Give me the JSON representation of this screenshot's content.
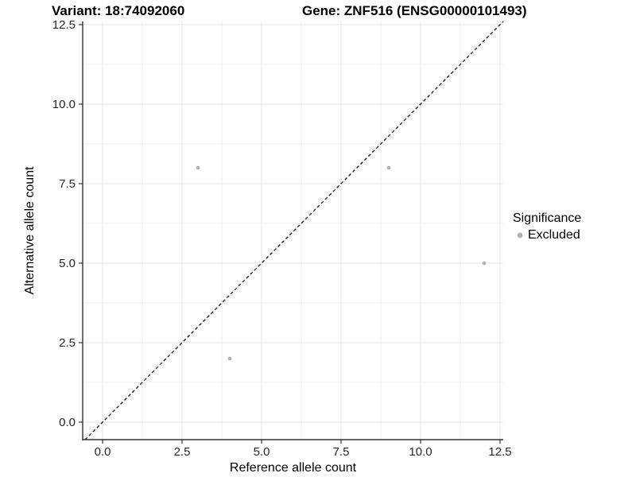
{
  "chart_data": {
    "type": "scatter",
    "titles": {
      "left": "Variant: 18:74092060",
      "right": "Gene: ZNF516 (ENSG00000101493)"
    },
    "xlabel": "Reference allele count",
    "ylabel": "Alternative allele count",
    "xlim": [
      -0.625,
      12.6
    ],
    "ylim": [
      -0.55,
      12.6
    ],
    "ticks": {
      "values": [
        0,
        2.5,
        5,
        7.5,
        10,
        12.5
      ],
      "labels": [
        "0.0",
        "2.5",
        "5.0",
        "7.5",
        "10.0",
        "12.5"
      ],
      "minor": [
        1.25,
        3.75,
        6.25,
        8.75,
        11.25
      ]
    },
    "grid": true,
    "series": [
      {
        "name": "Excluded",
        "color": "#b3b3b3",
        "points": [
          [
            3,
            8
          ],
          [
            9,
            8
          ],
          [
            12,
            5
          ],
          [
            4,
            2
          ]
        ]
      }
    ],
    "abline": {
      "slope": 1,
      "intercept": 0,
      "linetype": "dashed",
      "color": "#000000"
    },
    "legend": {
      "title": "Significance",
      "position": "right",
      "items": [
        {
          "label": "Excluded",
          "color": "#b3b3b3"
        }
      ]
    }
  },
  "style": {
    "background": "#ffffff",
    "grid_major": "#e4e4e4",
    "grid_minor": "#efefef",
    "axis_line": "#333333",
    "tick_text": "#262626"
  }
}
